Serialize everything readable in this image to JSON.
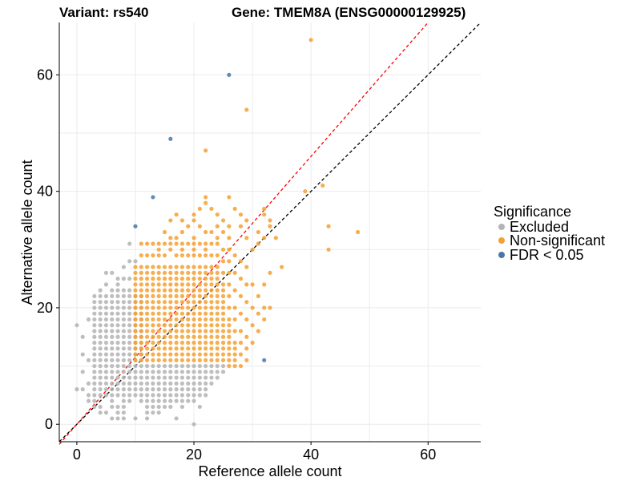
{
  "chart_data": {
    "type": "scatter",
    "title_left": "Variant: rs540",
    "title_right": "Gene: TMEM8A (ENSG00000129925)",
    "xlabel": "Reference allele count",
    "ylabel": "Alternative allele count",
    "xlim": [
      -3,
      69
    ],
    "ylim": [
      -3,
      69
    ],
    "xticks": [
      0,
      20,
      40,
      60
    ],
    "yticks": [
      0,
      20,
      40,
      60
    ],
    "grid": true,
    "legend": {
      "title": "Significance",
      "placement": "right",
      "entries": [
        {
          "key": "excluded",
          "label": "Excluded",
          "color": "#b3b3b3"
        },
        {
          "key": "nonsig",
          "label": "Non-significant",
          "color": "#f5a031"
        },
        {
          "key": "fdr",
          "label": "FDR < 0.05",
          "color": "#4a77a8"
        }
      ]
    },
    "reference_lines": [
      {
        "name": "identity",
        "slope": 1.0,
        "intercept": 0,
        "color": "#000000",
        "dash": "dashed"
      },
      {
        "name": "fit",
        "slope": 1.15,
        "intercept": 0,
        "color": "#ff0000",
        "dash": "dashed"
      }
    ],
    "series": [
      {
        "name": "Excluded",
        "key": "excluded",
        "color": "#b3b3b3",
        "grid_fill": {
          "x_range": [
            3,
            11
          ],
          "y_range": [
            5,
            22
          ],
          "step": 1
        },
        "points": [
          [
            0,
            6
          ],
          [
            0,
            17
          ],
          [
            1,
            6
          ],
          [
            1,
            9
          ],
          [
            1,
            12
          ],
          [
            1,
            15
          ],
          [
            2,
            4
          ],
          [
            2,
            5
          ],
          [
            2,
            7
          ],
          [
            2,
            11
          ],
          [
            2,
            18
          ],
          [
            3,
            3
          ],
          [
            3,
            4
          ],
          [
            3,
            14
          ],
          [
            3,
            15
          ],
          [
            3,
            16
          ],
          [
            4,
            2
          ],
          [
            4,
            3
          ],
          [
            4,
            17
          ],
          [
            4,
            23
          ],
          [
            5,
            2
          ],
          [
            5,
            19
          ],
          [
            5,
            24
          ],
          [
            5,
            26
          ],
          [
            6,
            1
          ],
          [
            6,
            3
          ],
          [
            6,
            4
          ],
          [
            6,
            21
          ],
          [
            6,
            23
          ],
          [
            6,
            26
          ],
          [
            7,
            1
          ],
          [
            7,
            2
          ],
          [
            7,
            3
          ],
          [
            7,
            23
          ],
          [
            7,
            24
          ],
          [
            7,
            25
          ],
          [
            8,
            1
          ],
          [
            8,
            2
          ],
          [
            8,
            3
          ],
          [
            8,
            4
          ],
          [
            8,
            23
          ],
          [
            8,
            25
          ],
          [
            8,
            27
          ],
          [
            9,
            4
          ],
          [
            9,
            23
          ],
          [
            9,
            25
          ],
          [
            9,
            28
          ],
          [
            9,
            31
          ],
          [
            10,
            28
          ],
          [
            11,
            4
          ],
          [
            11,
            5
          ],
          [
            11,
            6
          ],
          [
            11,
            7
          ],
          [
            11,
            8
          ],
          [
            11,
            9
          ],
          [
            11,
            10
          ],
          [
            12,
            2
          ],
          [
            12,
            3
          ],
          [
            12,
            4
          ],
          [
            12,
            5
          ],
          [
            12,
            6
          ],
          [
            12,
            7
          ],
          [
            12,
            8
          ],
          [
            12,
            9
          ],
          [
            12,
            10
          ],
          [
            13,
            2
          ],
          [
            13,
            3
          ],
          [
            13,
            4
          ],
          [
            13,
            5
          ],
          [
            13,
            6
          ],
          [
            13,
            7
          ],
          [
            13,
            8
          ],
          [
            13,
            9
          ],
          [
            13,
            10
          ],
          [
            14,
            3
          ],
          [
            14,
            4
          ],
          [
            14,
            5
          ],
          [
            14,
            6
          ],
          [
            14,
            7
          ],
          [
            14,
            8
          ],
          [
            14,
            9
          ],
          [
            14,
            10
          ],
          [
            15,
            3
          ],
          [
            15,
            4
          ],
          [
            15,
            5
          ],
          [
            15,
            6
          ],
          [
            15,
            7
          ],
          [
            15,
            8
          ],
          [
            15,
            9
          ],
          [
            15,
            10
          ],
          [
            16,
            3
          ],
          [
            16,
            5
          ],
          [
            16,
            6
          ],
          [
            16,
            7
          ],
          [
            16,
            8
          ],
          [
            16,
            9
          ],
          [
            16,
            10
          ],
          [
            17,
            4
          ],
          [
            17,
            5
          ],
          [
            17,
            6
          ],
          [
            17,
            7
          ],
          [
            17,
            8
          ],
          [
            17,
            9
          ],
          [
            17,
            10
          ],
          [
            18,
            4
          ],
          [
            18,
            5
          ],
          [
            18,
            6
          ],
          [
            18,
            7
          ],
          [
            18,
            8
          ],
          [
            18,
            9
          ],
          [
            18,
            10
          ],
          [
            19,
            5
          ],
          [
            19,
            6
          ],
          [
            19,
            7
          ],
          [
            19,
            8
          ],
          [
            19,
            9
          ],
          [
            19,
            10
          ],
          [
            20,
            5
          ],
          [
            20,
            6
          ],
          [
            20,
            7
          ],
          [
            20,
            8
          ],
          [
            20,
            9
          ],
          [
            20,
            10
          ],
          [
            21,
            5
          ],
          [
            21,
            6
          ],
          [
            21,
            7
          ],
          [
            21,
            8
          ],
          [
            21,
            9
          ],
          [
            21,
            10
          ],
          [
            22,
            6
          ],
          [
            22,
            7
          ],
          [
            22,
            8
          ],
          [
            22,
            9
          ],
          [
            22,
            10
          ],
          [
            23,
            7
          ],
          [
            23,
            8
          ],
          [
            23,
            9
          ],
          [
            23,
            10
          ],
          [
            24,
            8
          ],
          [
            24,
            9
          ],
          [
            24,
            10
          ],
          [
            25,
            9
          ],
          [
            25,
            10
          ],
          [
            14,
            2
          ],
          [
            16,
            4
          ],
          [
            19,
            4
          ],
          [
            20,
            4
          ],
          [
            21,
            3
          ],
          [
            22,
            5
          ],
          [
            18,
            3
          ],
          [
            20,
            0
          ],
          [
            17,
            1
          ],
          [
            12,
            1
          ],
          [
            10,
            1
          ]
        ]
      },
      {
        "name": "Non-significant",
        "key": "nonsig",
        "color": "#f5a031",
        "grid_fill": {
          "x_range": [
            10,
            24
          ],
          "y_range": [
            11,
            27
          ],
          "step": 1
        },
        "points": [
          [
            11,
            29
          ],
          [
            11,
            31
          ],
          [
            12,
            29
          ],
          [
            12,
            31
          ],
          [
            13,
            29
          ],
          [
            13,
            31
          ],
          [
            14,
            29
          ],
          [
            14,
            30
          ],
          [
            14,
            31
          ],
          [
            15,
            29
          ],
          [
            15,
            31
          ],
          [
            16,
            30
          ],
          [
            16,
            31
          ],
          [
            17,
            29
          ],
          [
            17,
            31
          ],
          [
            18,
            29
          ],
          [
            18,
            30
          ],
          [
            18,
            31
          ],
          [
            19,
            29
          ],
          [
            19,
            31
          ],
          [
            20,
            29
          ],
          [
            20,
            30
          ],
          [
            20,
            31
          ],
          [
            21,
            29
          ],
          [
            21,
            31
          ],
          [
            22,
            29
          ],
          [
            22,
            30
          ],
          [
            22,
            31
          ],
          [
            23,
            29
          ],
          [
            23,
            31
          ],
          [
            24,
            29
          ],
          [
            24,
            31
          ],
          [
            15,
            33
          ],
          [
            16,
            35
          ],
          [
            17,
            32
          ],
          [
            18,
            33
          ],
          [
            19,
            34
          ],
          [
            20,
            32
          ],
          [
            20,
            35
          ],
          [
            21,
            34
          ],
          [
            22,
            33
          ],
          [
            22,
            38
          ],
          [
            22,
            39
          ],
          [
            23,
            37
          ],
          [
            24,
            34
          ],
          [
            24,
            36
          ],
          [
            25,
            33
          ],
          [
            25,
            35
          ],
          [
            26,
            32
          ],
          [
            26,
            39
          ],
          [
            27,
            37
          ],
          [
            28,
            34
          ],
          [
            28,
            36
          ],
          [
            29,
            32
          ],
          [
            29,
            35
          ],
          [
            30,
            30
          ],
          [
            31,
            33
          ],
          [
            32,
            36
          ],
          [
            32,
            37
          ],
          [
            33,
            34
          ],
          [
            33,
            35
          ],
          [
            31,
            31
          ],
          [
            32,
            32
          ],
          [
            34,
            32
          ],
          [
            24,
            32
          ],
          [
            23,
            33
          ],
          [
            26,
            34
          ],
          [
            21,
            37
          ],
          [
            20,
            36
          ],
          [
            18,
            35
          ],
          [
            17,
            36
          ],
          [
            16,
            32
          ],
          [
            25,
            11
          ],
          [
            25,
            12
          ],
          [
            25,
            13
          ],
          [
            25,
            14
          ],
          [
            25,
            15
          ],
          [
            25,
            16
          ],
          [
            25,
            17
          ],
          [
            25,
            18
          ],
          [
            25,
            19
          ],
          [
            25,
            20
          ],
          [
            25,
            21
          ],
          [
            25,
            22
          ],
          [
            25,
            23
          ],
          [
            25,
            24
          ],
          [
            25,
            26
          ],
          [
            25,
            28
          ],
          [
            25,
            30
          ],
          [
            26,
            11
          ],
          [
            26,
            12
          ],
          [
            26,
            13
          ],
          [
            26,
            14
          ],
          [
            26,
            15
          ],
          [
            26,
            16
          ],
          [
            26,
            17
          ],
          [
            26,
            18
          ],
          [
            26,
            20
          ],
          [
            26,
            22
          ],
          [
            26,
            24
          ],
          [
            26,
            26
          ],
          [
            26,
            28
          ],
          [
            26,
            30
          ],
          [
            27,
            11
          ],
          [
            27,
            12
          ],
          [
            27,
            13
          ],
          [
            27,
            14
          ],
          [
            27,
            16
          ],
          [
            27,
            18
          ],
          [
            27,
            20
          ],
          [
            27,
            23
          ],
          [
            27,
            26
          ],
          [
            27,
            29
          ],
          [
            28,
            12
          ],
          [
            28,
            14
          ],
          [
            28,
            16
          ],
          [
            28,
            19
          ],
          [
            28,
            22
          ],
          [
            28,
            25
          ],
          [
            28,
            28
          ],
          [
            29,
            13
          ],
          [
            29,
            15
          ],
          [
            29,
            18
          ],
          [
            29,
            21
          ],
          [
            29,
            24
          ],
          [
            29,
            27
          ],
          [
            30,
            14
          ],
          [
            30,
            17
          ],
          [
            30,
            20
          ],
          [
            30,
            24
          ],
          [
            31,
            16
          ],
          [
            31,
            19
          ],
          [
            31,
            22
          ],
          [
            32,
            18
          ],
          [
            32,
            20
          ],
          [
            33,
            20
          ],
          [
            32,
            24
          ],
          [
            33,
            26
          ],
          [
            35,
            27
          ],
          [
            26,
            10
          ],
          [
            27,
            10
          ],
          [
            28,
            10
          ],
          [
            29,
            11
          ],
          [
            22,
            47
          ],
          [
            29,
            54
          ],
          [
            40,
            66
          ],
          [
            39,
            40
          ],
          [
            42,
            41
          ],
          [
            43,
            34
          ],
          [
            43,
            30
          ],
          [
            48,
            33
          ]
        ]
      },
      {
        "name": "FDR < 0.05",
        "key": "fdr",
        "color": "#4a77a8",
        "points": [
          [
            26,
            60
          ],
          [
            16,
            49
          ],
          [
            13,
            39
          ],
          [
            10,
            34
          ],
          [
            32,
            11
          ]
        ]
      }
    ]
  }
}
